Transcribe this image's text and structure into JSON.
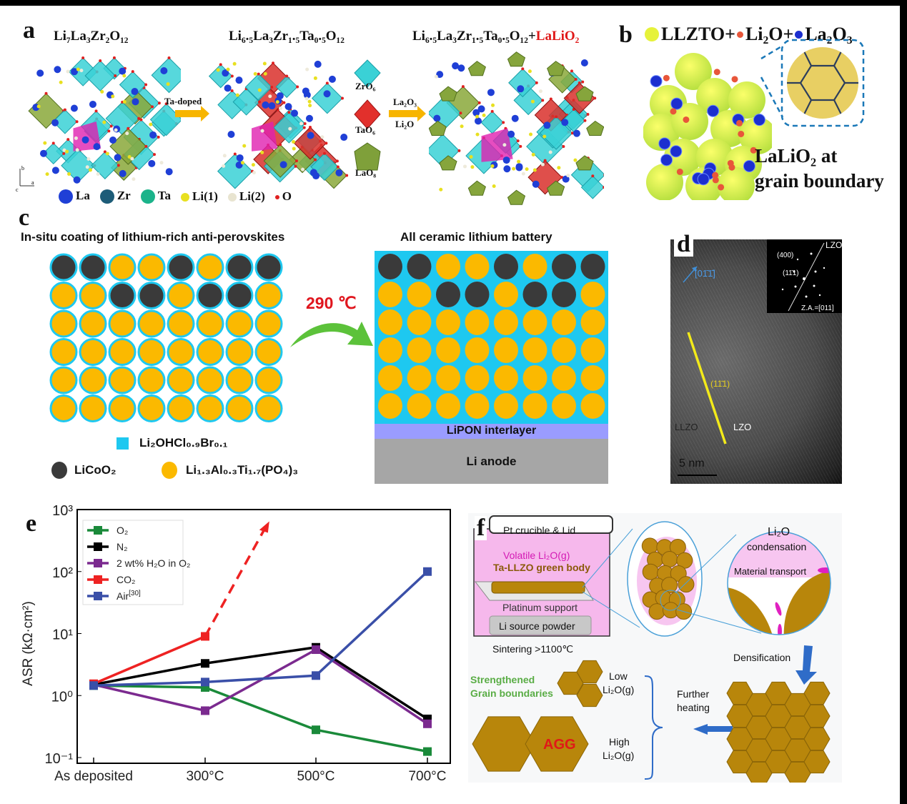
{
  "panel_a": {
    "label": "a",
    "titles": [
      "Li₇La₃Zr₂O₁₂",
      "Li₆.₅La₃Zr₁.₅Ta₀.₅O₁₂",
      "Li₆.₅La₃Zr₁.₅Ta₀.₅O₁₂+"
    ],
    "title_red_part": "LaLiO₂",
    "arrow1_label": "Ta-doped",
    "arrow2_label_top": "La₂O₃",
    "arrow2_label_bottom": "Li₂O",
    "polyhedra": [
      "ZrO₆",
      "TaO₆",
      "LaO₈"
    ],
    "axes": {
      "b": "b",
      "a": "a",
      "c": "c"
    },
    "legend": [
      {
        "label": "La",
        "color": "#1f3fd6"
      },
      {
        "label": "Zr",
        "color": "#1d5c78"
      },
      {
        "label": "Ta",
        "color": "#1bb38a"
      },
      {
        "label": "Li(1)",
        "color": "#e8e020"
      },
      {
        "label": "Li(2)",
        "color": "#e8e4d0"
      },
      {
        "label": "O",
        "color": "#e02020"
      }
    ]
  },
  "panel_b": {
    "label": "b",
    "legend": [
      {
        "label": "LLZTO+",
        "color": "#e6f23a"
      },
      {
        "label": "Li₂O+",
        "color": "#e8563a"
      },
      {
        "label": "La₂O₃",
        "color": "#1c2fcf"
      }
    ],
    "caption_line1": "LaLiO₂  at",
    "caption_line2": "grain boundary"
  },
  "panel_c": {
    "label": "c",
    "left_title": "In-situ coating of lithium-rich anti-perovskites",
    "right_title": "All ceramic lithium battery",
    "temperature": "290 ℃",
    "legend_coating": "Li₂OHCl₀.₉Br₀.₁",
    "legend_cathode": "LiCoO₂",
    "legend_electrolyte": "Li₁.₃Al₀.₃Ti₁.₇(PO₄)₃",
    "interlayer": "LiPON interlayer",
    "anode": "Li anode",
    "colors": {
      "coating": "#1ec8f0",
      "cathode": "#3a3a3a",
      "electrolyte": "#fbb900",
      "interlayer": "#9a9cff",
      "anode": "#a6a6a6"
    }
  },
  "panel_d": {
    "label": "d",
    "direction": "[01̄1̄]",
    "plane": "(11̄1)",
    "region_left": "LLZO",
    "region_right": "LZO",
    "scale_bar": "5 nm",
    "inset": {
      "spot1": "(400)",
      "spot2": "(11̄1)",
      "phase": "LZO",
      "zone_axis": "Z.A.=[011]"
    }
  },
  "panel_f": {
    "label": "f",
    "crucible": "Pt crucible & Lid",
    "volatile": "Volatile Li₂O(g)",
    "green_body": "Ta-LLZO green body",
    "support": "Platinum support",
    "source": "Li source powder",
    "sintering": "Sintering >1100℃",
    "condensation_line1": "Li₂O",
    "condensation_line2": "condensation",
    "transport": "Material transport",
    "densification": "Densification",
    "further_heating_line1": "Further",
    "further_heating_line2": "heating",
    "low_line1": "Low",
    "low_line2": "Li₂O(g)",
    "high_line1": "High",
    "high_line2": "Li₂O(g)",
    "strengthened_line1": "Strengthened",
    "strengthened_line2": "Grain boundaries",
    "agg": "AGG"
  },
  "chart_data": {
    "type": "line",
    "panel_label": "e",
    "title": "",
    "xlabel": "",
    "ylabel": "ASR (kΩ·cm²)",
    "yscale": "log",
    "ylim": [
      0.1,
      1000
    ],
    "yticks": [
      "10⁻¹",
      "10⁰",
      "10¹",
      "10²",
      "10³"
    ],
    "categories": [
      "As deposited",
      "300°C",
      "500°C",
      "700°C"
    ],
    "legend_placement": "top-left",
    "series": [
      {
        "name": "O₂",
        "color": "#1a8a3a",
        "values": [
          1.45,
          1.35,
          0.28,
          0.125
        ]
      },
      {
        "name": "N₂",
        "color": "#000000",
        "values": [
          1.5,
          3.3,
          6.0,
          0.42
        ]
      },
      {
        "name": "2 wt% H₂O in O₂",
        "color": "#7b2a8f",
        "values": [
          1.5,
          0.57,
          5.5,
          0.35
        ]
      },
      {
        "name": "CO₂",
        "color": "#ee2222",
        "values": [
          1.55,
          9.0,
          null,
          null
        ],
        "trend": {
          "style": "dashed-arrow",
          "to_x": 1.55,
          "to_y": 550
        }
      },
      {
        "name": "Air",
        "name_superscript": "[30]",
        "color": "#3a4fa8",
        "values": [
          1.45,
          1.65,
          2.1,
          100
        ]
      }
    ]
  }
}
